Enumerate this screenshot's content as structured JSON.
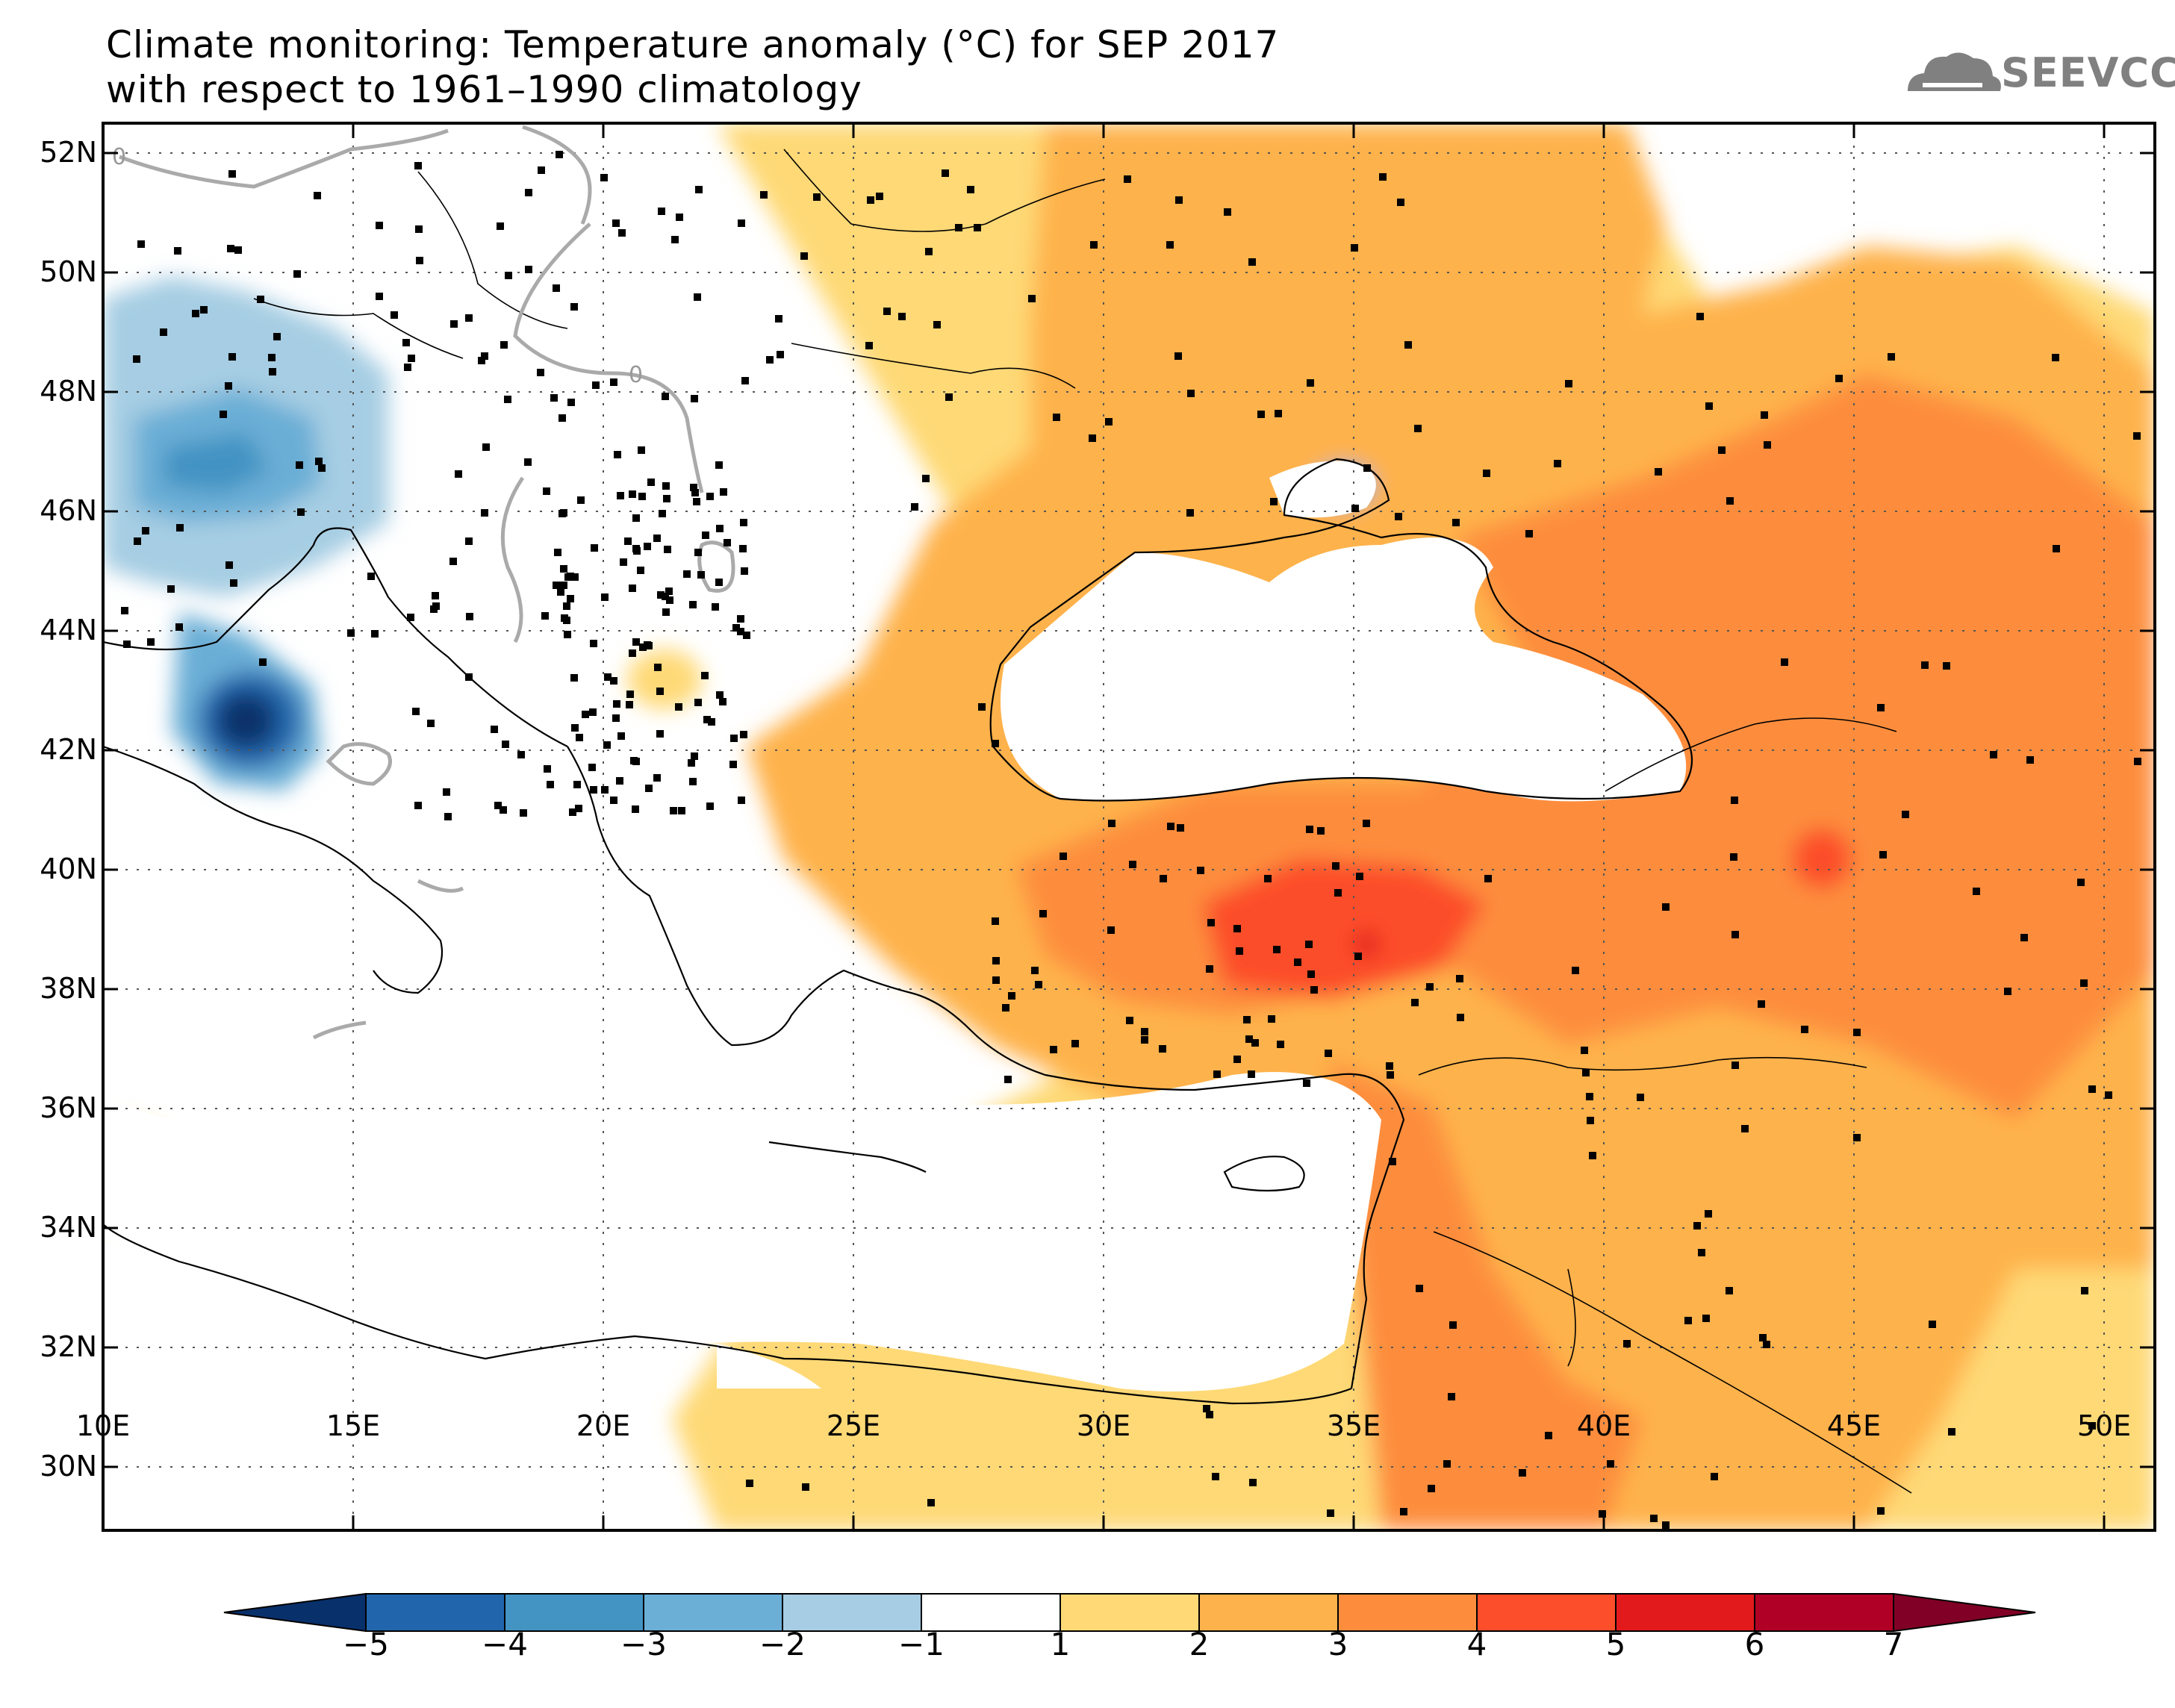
{
  "title": {
    "line1": "Climate monitoring: Temperature anomaly (°C) for SEP 2017",
    "line2": "with respect to 1961–1990 climatology"
  },
  "logo": {
    "text": "SEEVCCC",
    "icon": "cloud-icon",
    "color": "#808080"
  },
  "map": {
    "lon_range": [
      10,
      51
    ],
    "lat_range": [
      29,
      52.5
    ],
    "y_ticks": [
      "52N",
      "50N",
      "48N",
      "46N",
      "44N",
      "42N",
      "40N",
      "38N",
      "36N",
      "34N",
      "32N",
      "30N"
    ],
    "x_ticks": [
      "10E",
      "15E",
      "20E",
      "25E",
      "30E",
      "35E",
      "40E",
      "45E",
      "50E"
    ],
    "zero_contour_label": "0"
  },
  "colorbar": {
    "labels": [
      "−5",
      "−4",
      "−3",
      "−2",
      "−1",
      "1",
      "2",
      "3",
      "4",
      "5",
      "6",
      "7"
    ],
    "colors": [
      "#08306b",
      "#2166ac",
      "#4393c3",
      "#6baed6",
      "#a6cde3",
      "#ffffff",
      "#fed976",
      "#feb24c",
      "#fd8d3c",
      "#fc4e2a",
      "#e31a1c",
      "#b10026",
      "#800026"
    ]
  }
}
